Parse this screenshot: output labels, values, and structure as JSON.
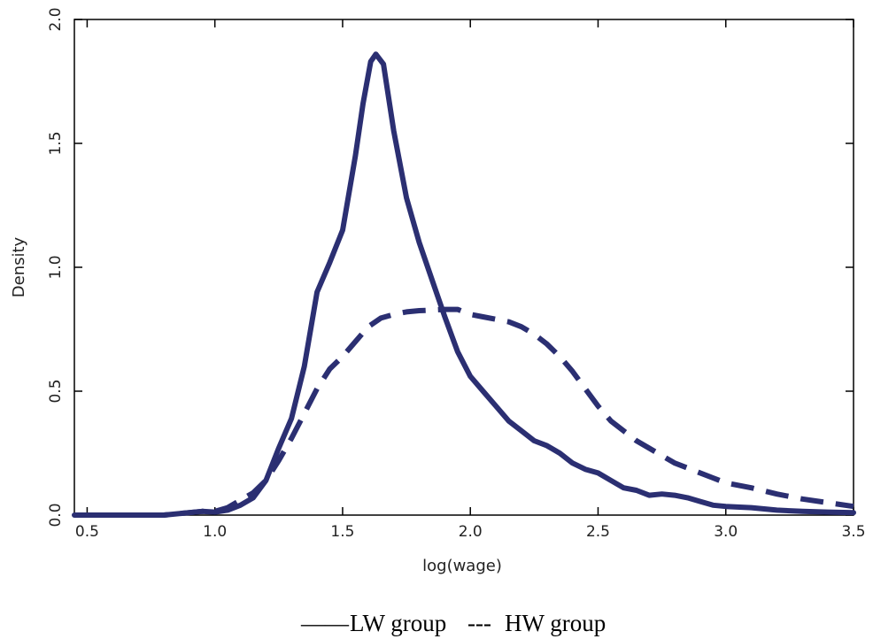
{
  "chart_data": {
    "type": "line",
    "title": "",
    "xlabel": "log(wage)",
    "ylabel": "Density",
    "xlim": [
      0.45,
      3.5
    ],
    "ylim": [
      0.0,
      2.0
    ],
    "x_ticks": [
      "0.5",
      "1.0",
      "1.5",
      "2.0",
      "2.5",
      "3.0",
      "3.5"
    ],
    "y_ticks": [
      "0.0",
      "0.5",
      "1.0",
      "1.5",
      "2.0"
    ],
    "grid": false,
    "legend_position": "bottom-center",
    "line_color": "#2b2f72",
    "series": [
      {
        "name": "LW group",
        "style": "solid",
        "x": [
          0.45,
          0.8,
          0.9,
          0.95,
          1.0,
          1.05,
          1.1,
          1.15,
          1.2,
          1.25,
          1.3,
          1.35,
          1.4,
          1.45,
          1.5,
          1.55,
          1.58,
          1.61,
          1.63,
          1.66,
          1.7,
          1.75,
          1.8,
          1.85,
          1.9,
          1.95,
          2.0,
          2.05,
          2.1,
          2.15,
          2.2,
          2.25,
          2.3,
          2.35,
          2.4,
          2.45,
          2.5,
          2.55,
          2.6,
          2.65,
          2.7,
          2.75,
          2.8,
          2.85,
          2.9,
          2.95,
          3.0,
          3.1,
          3.2,
          3.3,
          3.4,
          3.5
        ],
        "y": [
          0.0,
          0.0,
          0.01,
          0.015,
          0.012,
          0.02,
          0.04,
          0.07,
          0.14,
          0.27,
          0.39,
          0.6,
          0.9,
          1.02,
          1.15,
          1.45,
          1.66,
          1.83,
          1.86,
          1.82,
          1.55,
          1.28,
          1.1,
          0.95,
          0.8,
          0.66,
          0.56,
          0.5,
          0.44,
          0.38,
          0.34,
          0.3,
          0.28,
          0.25,
          0.21,
          0.185,
          0.17,
          0.14,
          0.11,
          0.1,
          0.08,
          0.085,
          0.08,
          0.07,
          0.055,
          0.04,
          0.035,
          0.03,
          0.02,
          0.015,
          0.012,
          0.01
        ]
      },
      {
        "name": "HW group",
        "style": "dashed",
        "x": [
          0.45,
          0.8,
          0.9,
          0.95,
          1.0,
          1.05,
          1.1,
          1.15,
          1.2,
          1.25,
          1.3,
          1.35,
          1.4,
          1.45,
          1.5,
          1.55,
          1.6,
          1.65,
          1.7,
          1.75,
          1.8,
          1.85,
          1.9,
          1.95,
          2.0,
          2.05,
          2.1,
          2.15,
          2.2,
          2.25,
          2.3,
          2.35,
          2.4,
          2.45,
          2.5,
          2.55,
          2.6,
          2.65,
          2.7,
          2.75,
          2.8,
          2.85,
          2.9,
          2.95,
          3.0,
          3.1,
          3.2,
          3.3,
          3.4,
          3.5
        ],
        "y": [
          0.0,
          0.0,
          0.01,
          0.015,
          0.015,
          0.03,
          0.06,
          0.09,
          0.14,
          0.22,
          0.31,
          0.41,
          0.51,
          0.59,
          0.64,
          0.7,
          0.76,
          0.795,
          0.81,
          0.82,
          0.825,
          0.827,
          0.83,
          0.83,
          0.81,
          0.8,
          0.79,
          0.78,
          0.76,
          0.73,
          0.69,
          0.64,
          0.58,
          0.51,
          0.44,
          0.38,
          0.34,
          0.3,
          0.27,
          0.24,
          0.21,
          0.19,
          0.17,
          0.15,
          0.13,
          0.11,
          0.085,
          0.065,
          0.05,
          0.035
        ]
      }
    ]
  },
  "legend": {
    "items": [
      {
        "marker": "——",
        "label": "LW group"
      },
      {
        "marker": "---",
        "label": "HW group"
      }
    ]
  }
}
